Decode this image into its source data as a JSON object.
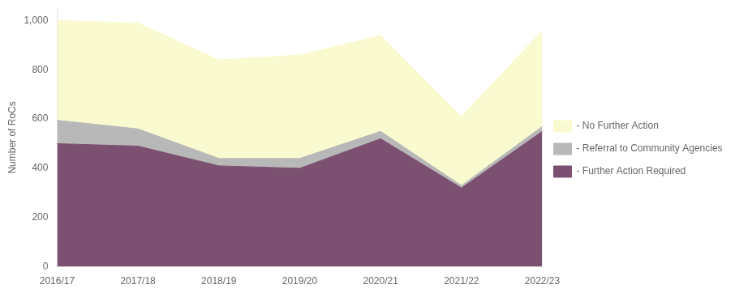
{
  "chart_data": {
    "type": "area",
    "stacked": true,
    "categories": [
      "2016/17",
      "2017/18",
      "2018/19",
      "2019/20",
      "2020/21",
      "2021/22",
      "2022/23"
    ],
    "series": [
      {
        "name": "- Further Action Required",
        "color": "#7B5070",
        "values": [
          500,
          490,
          410,
          400,
          520,
          320,
          550
        ]
      },
      {
        "name": "- Referral to Community Agencies",
        "color": "#B8B8B8",
        "values": [
          95,
          70,
          30,
          40,
          30,
          10,
          20
        ]
      },
      {
        "name": "- No Further Action",
        "color": "#FAFAD0",
        "values": [
          405,
          430,
          400,
          420,
          390,
          280,
          390
        ]
      }
    ],
    "ylabel": "Number of RoCs",
    "ylim": [
      0,
      1050
    ],
    "yticks": [
      0,
      200,
      400,
      600,
      800,
      {
        "value": 1000,
        "label": "1,000"
      }
    ],
    "grid": false,
    "legend": "right"
  }
}
